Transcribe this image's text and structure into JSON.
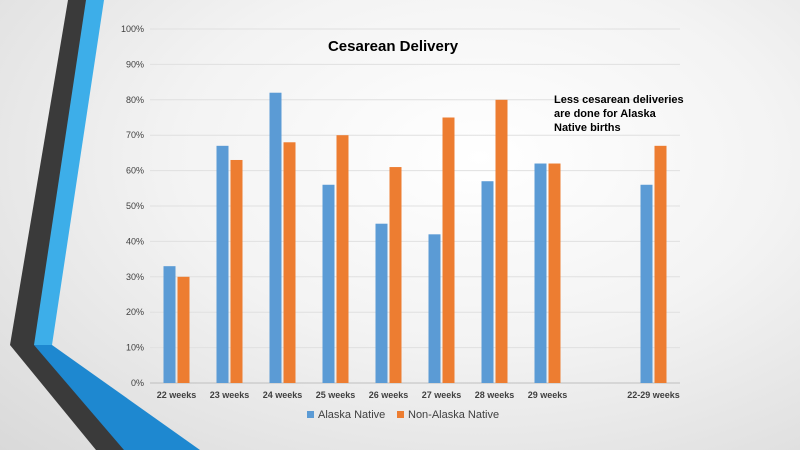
{
  "chart_data": {
    "type": "bar",
    "title": "Cesarean Delivery",
    "categories": [
      "22 weeks",
      "23 weeks",
      "24 weeks",
      "25 weeks",
      "26 weeks",
      "27 weeks",
      "28 weeks",
      "29 weeks",
      "",
      "22-29 weeks"
    ],
    "series": [
      {
        "name": "Alaska Native",
        "color": "#5b9bd5",
        "values": [
          33,
          67,
          82,
          56,
          45,
          42,
          57,
          62,
          null,
          56
        ]
      },
      {
        "name": "Non-Alaska Native",
        "color": "#ed7d31",
        "values": [
          30,
          63,
          68,
          70,
          61,
          75,
          80,
          62,
          null,
          67
        ]
      }
    ],
    "ylim": [
      0,
      100
    ],
    "yticks": [
      "0%",
      "10%",
      "20%",
      "30%",
      "40%",
      "50%",
      "60%",
      "70%",
      "80%",
      "90%",
      "100%"
    ],
    "legend_position": "bottom",
    "annotation_lines": [
      "Less cesarean deliveries",
      "are done for Alaska",
      "Native births"
    ]
  }
}
